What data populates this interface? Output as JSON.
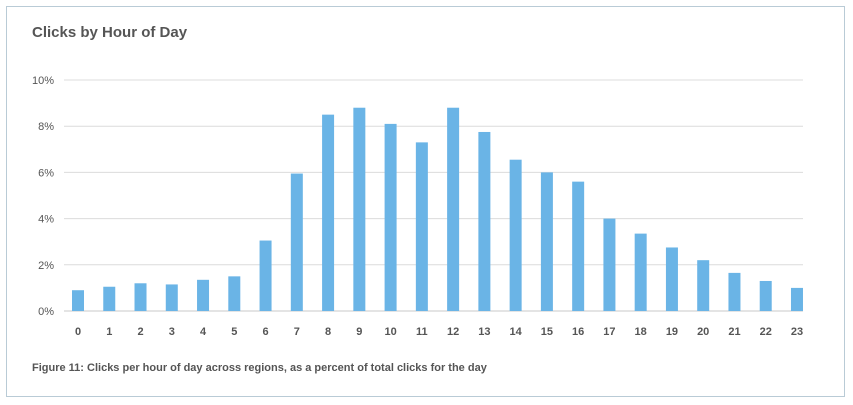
{
  "chart_data": {
    "type": "bar",
    "title": "Clicks by Hour of Day",
    "caption": "Figure 11: Clicks per hour of day across regions, as a percent of total clicks for the day",
    "xlabel": "",
    "ylabel": "",
    "categories": [
      "0",
      "1",
      "2",
      "3",
      "4",
      "5",
      "6",
      "7",
      "8",
      "9",
      "10",
      "11",
      "12",
      "13",
      "14",
      "15",
      "16",
      "17",
      "18",
      "19",
      "20",
      "21",
      "22",
      "23"
    ],
    "values": [
      0.9,
      1.05,
      1.2,
      1.15,
      1.35,
      1.5,
      3.05,
      5.95,
      8.5,
      8.8,
      8.1,
      7.3,
      8.8,
      7.75,
      6.55,
      6.0,
      5.6,
      4.0,
      3.35,
      2.75,
      2.2,
      1.65,
      1.3,
      1.0
    ],
    "ylim": [
      0,
      10
    ],
    "yticks": [
      0,
      2,
      4,
      6,
      8,
      10
    ],
    "ytick_labels": [
      "0%",
      "2%",
      "4%",
      "6%",
      "8%",
      "10%"
    ],
    "grid": true,
    "legend": "none",
    "bar_color": "#6ab4e6",
    "grid_color": "#dcdcdc"
  }
}
